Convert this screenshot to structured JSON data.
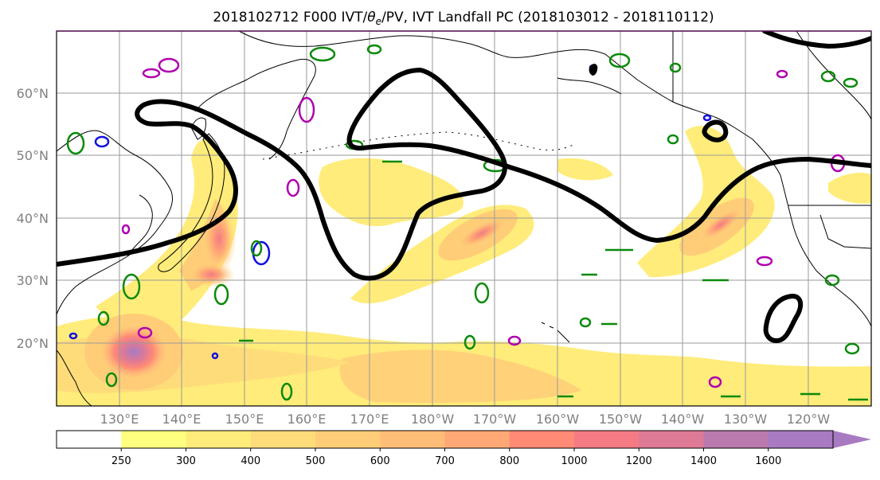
{
  "title": {
    "part1": "2018102712 F000 IVT/",
    "theta": "θ",
    "sub": "e",
    "part2": "/PV, IVT Landfall PC (2018103012 - 2018110112)"
  },
  "map": {
    "lat_labels": [
      "60°N",
      "50°N",
      "40°N",
      "30°N",
      "20°N"
    ],
    "lon_labels": [
      "130°E",
      "140°E",
      "150°E",
      "160°E",
      "170°E",
      "180°W",
      "170°W",
      "160°W",
      "150°W",
      "140°W",
      "130°W",
      "120°W"
    ],
    "grid": true,
    "ivt_color": "#ffd27a",
    "pv_colors": {
      "green": "#0a8a0a",
      "blue": "#1010e0",
      "magenta": "#b000b0"
    },
    "pc_color": "#000000"
  },
  "colorbar": {
    "ticks": [
      "250",
      "300",
      "400",
      "500",
      "600",
      "700",
      "800",
      "1000",
      "1200",
      "1400",
      "1600"
    ],
    "colors": [
      "#ffffff",
      "#ffff7f",
      "#ffec7a",
      "#ffdc7a",
      "#ffcd78",
      "#ffbd78",
      "#ffa876",
      "#ff8a76",
      "#f47a84",
      "#de7a96",
      "#bb7aad",
      "#a87ac2",
      "#a87ac2"
    ]
  }
}
